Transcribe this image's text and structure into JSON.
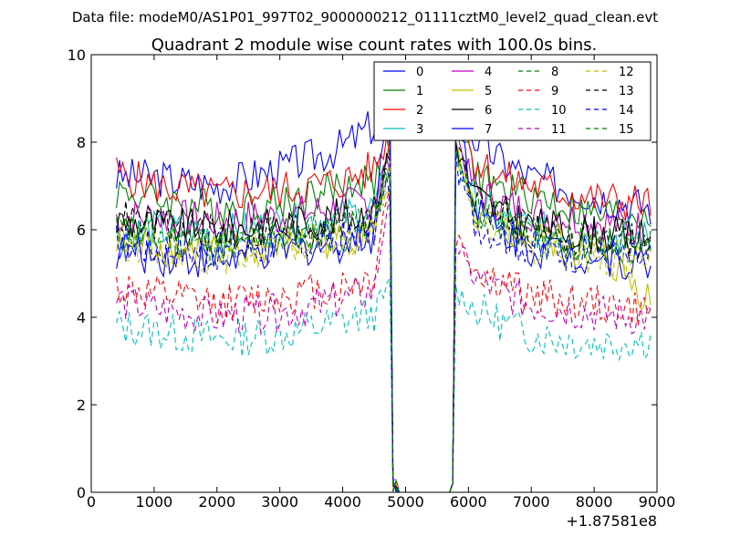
{
  "figure": {
    "suptitle": "Data file: modeM0/AS1P01_997T02_9000000212_01111cztM0_level2_quad_clean.evt"
  },
  "chart_data": {
    "type": "line",
    "title": "Quadrant 2 module wise count rates with 100.0s bins.",
    "xlabel": "",
    "ylabel": "",
    "x_offset_label": "+1.87581e8",
    "xlim": [
      0,
      9000
    ],
    "ylim": [
      0,
      10
    ],
    "xticks": [
      0,
      1000,
      2000,
      3000,
      4000,
      5000,
      6000,
      7000,
      8000,
      9000
    ],
    "yticks": [
      0,
      2,
      4,
      6,
      8,
      10
    ],
    "legend_position": "top-right",
    "legend_columns": 4,
    "gap": {
      "start": 4900,
      "end": 5700
    },
    "series": [
      {
        "name": "0",
        "color": "#0000ff",
        "dash": "solid",
        "knots": [
          [
            400,
            7.2
          ],
          [
            1000,
            7.2
          ],
          [
            2000,
            7.0
          ],
          [
            3000,
            7.4
          ],
          [
            4000,
            7.9
          ],
          [
            4500,
            8.4
          ],
          [
            4700,
            8.8
          ],
          [
            5800,
            8.6
          ],
          [
            6100,
            8.1
          ],
          [
            6500,
            7.6
          ],
          [
            7000,
            7.2
          ],
          [
            8000,
            6.8
          ],
          [
            8900,
            6.5
          ]
        ]
      },
      {
        "name": "1",
        "color": "#008000",
        "dash": "solid",
        "knots": [
          [
            400,
            6.9
          ],
          [
            1000,
            6.7
          ],
          [
            2000,
            6.5
          ],
          [
            3000,
            6.6
          ],
          [
            4000,
            7.0
          ],
          [
            4500,
            7.2
          ],
          [
            4700,
            7.7
          ],
          [
            5800,
            8.6
          ],
          [
            6100,
            7.3
          ],
          [
            6500,
            6.9
          ],
          [
            7000,
            6.8
          ],
          [
            8000,
            6.3
          ],
          [
            8900,
            6.4
          ]
        ]
      },
      {
        "name": "2",
        "color": "#ff0000",
        "dash": "solid",
        "knots": [
          [
            400,
            7.3
          ],
          [
            1000,
            7.0
          ],
          [
            2000,
            6.8
          ],
          [
            3000,
            6.9
          ],
          [
            4000,
            7.1
          ],
          [
            4500,
            7.4
          ],
          [
            4700,
            8.0
          ],
          [
            5800,
            8.7
          ],
          [
            6100,
            7.6
          ],
          [
            6500,
            7.2
          ],
          [
            7000,
            7.0
          ],
          [
            8000,
            6.7
          ],
          [
            8900,
            6.6
          ]
        ]
      },
      {
        "name": "3",
        "color": "#00bfbf",
        "dash": "solid",
        "knots": [
          [
            400,
            5.9
          ],
          [
            1000,
            6.0
          ],
          [
            2000,
            5.9
          ],
          [
            3000,
            6.1
          ],
          [
            4000,
            6.3
          ],
          [
            4500,
            6.5
          ],
          [
            4700,
            7.4
          ],
          [
            5800,
            7.9
          ],
          [
            6100,
            6.6
          ],
          [
            6500,
            6.3
          ],
          [
            7000,
            6.0
          ],
          [
            8000,
            5.9
          ],
          [
            8900,
            5.8
          ]
        ]
      },
      {
        "name": "4",
        "color": "#bf00bf",
        "dash": "solid",
        "knots": [
          [
            400,
            6.3
          ],
          [
            1000,
            6.3
          ],
          [
            2000,
            6.2
          ],
          [
            3000,
            6.3
          ],
          [
            4000,
            6.5
          ],
          [
            4500,
            6.7
          ],
          [
            4700,
            7.5
          ],
          [
            5800,
            8.2
          ],
          [
            6100,
            6.9
          ],
          [
            6500,
            6.6
          ],
          [
            7000,
            6.4
          ],
          [
            8000,
            6.2
          ],
          [
            8900,
            6.0
          ]
        ]
      },
      {
        "name": "5",
        "color": "#bfbf00",
        "dash": "solid",
        "knots": [
          [
            400,
            5.6
          ],
          [
            1000,
            5.6
          ],
          [
            2000,
            5.5
          ],
          [
            3000,
            5.6
          ],
          [
            4000,
            5.8
          ],
          [
            4500,
            6.0
          ],
          [
            4700,
            7.0
          ],
          [
            5800,
            7.8
          ],
          [
            6100,
            6.3
          ],
          [
            6500,
            6.0
          ],
          [
            7000,
            5.8
          ],
          [
            8000,
            5.6
          ],
          [
            8900,
            4.4
          ]
        ]
      },
      {
        "name": "6",
        "color": "#000000",
        "dash": "solid",
        "knots": [
          [
            400,
            6.2
          ],
          [
            1000,
            6.1
          ],
          [
            2000,
            6.0
          ],
          [
            3000,
            6.1
          ],
          [
            4000,
            6.3
          ],
          [
            4500,
            6.4
          ],
          [
            4700,
            7.6
          ],
          [
            5800,
            8.0
          ],
          [
            6100,
            6.8
          ],
          [
            6500,
            6.4
          ],
          [
            7000,
            6.1
          ],
          [
            8000,
            5.9
          ],
          [
            8900,
            5.8
          ]
        ]
      },
      {
        "name": "7",
        "color": "#0000ff",
        "dash": "solid",
        "knots": [
          [
            400,
            5.5
          ],
          [
            1000,
            5.4
          ],
          [
            2000,
            5.3
          ],
          [
            3000,
            5.5
          ],
          [
            4000,
            5.7
          ],
          [
            4500,
            5.9
          ],
          [
            4700,
            9.1
          ],
          [
            5800,
            9.2
          ],
          [
            6100,
            6.4
          ],
          [
            6500,
            6.0
          ],
          [
            7000,
            5.6
          ],
          [
            8000,
            5.4
          ],
          [
            8900,
            5.2
          ]
        ]
      },
      {
        "name": "8",
        "color": "#008000",
        "dash": "dashed",
        "knots": [
          [
            400,
            5.9
          ],
          [
            1000,
            5.8
          ],
          [
            2000,
            5.6
          ],
          [
            3000,
            5.8
          ],
          [
            4000,
            5.9
          ],
          [
            4500,
            6.1
          ],
          [
            4700,
            7.2
          ],
          [
            5800,
            7.7
          ],
          [
            6100,
            6.5
          ],
          [
            6500,
            6.1
          ],
          [
            7000,
            5.8
          ],
          [
            8000,
            5.6
          ],
          [
            8900,
            5.5
          ]
        ]
      },
      {
        "name": "9",
        "color": "#ff0000",
        "dash": "dashed",
        "knots": [
          [
            400,
            4.7
          ],
          [
            1000,
            4.5
          ],
          [
            2000,
            4.3
          ],
          [
            3000,
            4.5
          ],
          [
            4000,
            4.7
          ],
          [
            4500,
            4.9
          ],
          [
            4700,
            6.8
          ],
          [
            5800,
            5.8
          ],
          [
            6100,
            5.1
          ],
          [
            6500,
            4.8
          ],
          [
            7000,
            4.5
          ],
          [
            8000,
            4.3
          ],
          [
            8900,
            4.1
          ]
        ]
      },
      {
        "name": "10",
        "color": "#00bfbf",
        "dash": "dashed",
        "knots": [
          [
            400,
            3.8
          ],
          [
            1000,
            3.7
          ],
          [
            2000,
            3.5
          ],
          [
            3000,
            3.6
          ],
          [
            4000,
            3.9
          ],
          [
            4500,
            4.1
          ],
          [
            4700,
            4.6
          ],
          [
            5800,
            4.6
          ],
          [
            6100,
            4.2
          ],
          [
            6500,
            3.9
          ],
          [
            7000,
            3.6
          ],
          [
            8000,
            3.4
          ],
          [
            8900,
            3.5
          ]
        ]
      },
      {
        "name": "11",
        "color": "#bf00bf",
        "dash": "dashed",
        "knots": [
          [
            400,
            4.4
          ],
          [
            1000,
            4.2
          ],
          [
            2000,
            4.0
          ],
          [
            3000,
            4.1
          ],
          [
            4000,
            4.4
          ],
          [
            4500,
            4.6
          ],
          [
            4700,
            6.5
          ],
          [
            5800,
            5.7
          ],
          [
            6100,
            4.9
          ],
          [
            6500,
            4.6
          ],
          [
            7000,
            4.3
          ],
          [
            8000,
            4.1
          ],
          [
            8900,
            4.0
          ]
        ]
      },
      {
        "name": "12",
        "color": "#bfbf00",
        "dash": "dashed",
        "knots": [
          [
            400,
            5.8
          ],
          [
            1000,
            5.6
          ],
          [
            2000,
            5.4
          ],
          [
            3000,
            5.6
          ],
          [
            4000,
            5.8
          ],
          [
            4500,
            6.0
          ],
          [
            4700,
            7.1
          ],
          [
            5800,
            7.6
          ],
          [
            6100,
            6.3
          ],
          [
            6500,
            5.9
          ],
          [
            7000,
            5.6
          ],
          [
            8000,
            5.4
          ],
          [
            8900,
            5.3
          ]
        ]
      },
      {
        "name": "13",
        "color": "#000000",
        "dash": "dashed",
        "knots": [
          [
            400,
            6.3
          ],
          [
            1000,
            6.1
          ],
          [
            2000,
            5.9
          ],
          [
            3000,
            6.0
          ],
          [
            4000,
            6.2
          ],
          [
            4500,
            6.3
          ],
          [
            4700,
            7.5
          ],
          [
            5800,
            7.9
          ],
          [
            6100,
            6.7
          ],
          [
            6500,
            6.3
          ],
          [
            7000,
            6.0
          ],
          [
            8000,
            5.8
          ],
          [
            8900,
            5.7
          ]
        ]
      },
      {
        "name": "14",
        "color": "#0000ff",
        "dash": "dashed",
        "knots": [
          [
            400,
            5.7
          ],
          [
            1000,
            5.6
          ],
          [
            2000,
            5.5
          ],
          [
            3000,
            5.6
          ],
          [
            4000,
            5.8
          ],
          [
            4500,
            6.0
          ],
          [
            4700,
            7.0
          ],
          [
            5800,
            7.5
          ],
          [
            6100,
            6.2
          ],
          [
            6500,
            5.9
          ],
          [
            7000,
            5.6
          ],
          [
            8000,
            5.4
          ],
          [
            8900,
            5.3
          ]
        ]
      },
      {
        "name": "15",
        "color": "#008000",
        "dash": "dashed",
        "knots": [
          [
            400,
            6.0
          ],
          [
            1000,
            5.9
          ],
          [
            2000,
            5.7
          ],
          [
            3000,
            5.9
          ],
          [
            4000,
            6.1
          ],
          [
            4500,
            6.3
          ],
          [
            4700,
            7.3
          ],
          [
            5800,
            7.8
          ],
          [
            6100,
            6.6
          ],
          [
            6500,
            6.2
          ],
          [
            7000,
            5.9
          ],
          [
            8000,
            5.7
          ],
          [
            8900,
            5.6
          ]
        ]
      }
    ]
  }
}
